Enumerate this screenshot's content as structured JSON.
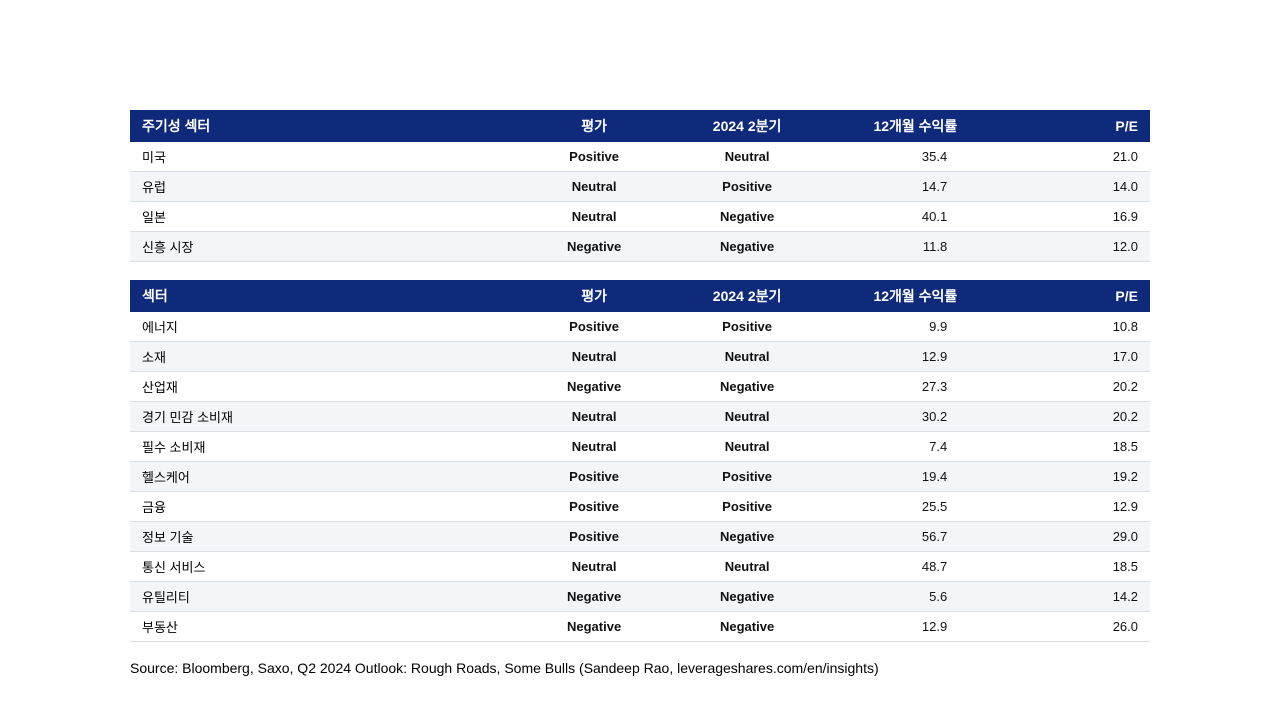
{
  "colors": {
    "header_bg": "#0f2a7a",
    "header_text": "#ffffff",
    "row_alt_bg": "#f3f5f9",
    "border": "#d9dde4",
    "positive": "#1fa63a",
    "neutral": "#9aa0a8",
    "negative": "#e64540"
  },
  "columns": {
    "rating": "평가",
    "q2": "2024 2분기",
    "return": "12개월 수익률",
    "pe": "P/E"
  },
  "table1": {
    "name_header": "주기성 섹터",
    "rows": [
      {
        "name": "미국",
        "rating": "Positive",
        "q2": "Neutral",
        "return": "35.4",
        "pe": "21.0"
      },
      {
        "name": "유럽",
        "rating": "Neutral",
        "q2": "Positive",
        "return": "14.7",
        "pe": "14.0"
      },
      {
        "name": "일본",
        "rating": "Neutral",
        "q2": "Negative",
        "return": "40.1",
        "pe": "16.9"
      },
      {
        "name": "신흥 시장",
        "rating": "Negative",
        "q2": "Negative",
        "return": "11.8",
        "pe": "12.0"
      }
    ]
  },
  "table2": {
    "name_header": "섹터",
    "rows": [
      {
        "name": "에너지",
        "rating": "Positive",
        "q2": "Positive",
        "return": "9.9",
        "pe": "10.8"
      },
      {
        "name": "소재",
        "rating": "Neutral",
        "q2": "Neutral",
        "return": "12.9",
        "pe": "17.0"
      },
      {
        "name": "산업재",
        "rating": "Negative",
        "q2": "Negative",
        "return": "27.3",
        "pe": "20.2"
      },
      {
        "name": "경기 민감 소비재",
        "rating": "Neutral",
        "q2": "Neutral",
        "return": "30.2",
        "pe": "20.2"
      },
      {
        "name": "필수 소비재",
        "rating": "Neutral",
        "q2": "Neutral",
        "return": "7.4",
        "pe": "18.5"
      },
      {
        "name": "헬스케어",
        "rating": "Positive",
        "q2": "Positive",
        "return": "19.4",
        "pe": "19.2"
      },
      {
        "name": "금융",
        "rating": "Positive",
        "q2": "Positive",
        "return": "25.5",
        "pe": "12.9"
      },
      {
        "name": "정보 기술",
        "rating": "Positive",
        "q2": "Negative",
        "return": "56.7",
        "pe": "29.0"
      },
      {
        "name": "통신 서비스",
        "rating": "Neutral",
        "q2": "Neutral",
        "return": "48.7",
        "pe": "18.5"
      },
      {
        "name": "유틸리티",
        "rating": "Negative",
        "q2": "Negative",
        "return": "5.6",
        "pe": "14.2"
      },
      {
        "name": "부동산",
        "rating": "Negative",
        "q2": "Negative",
        "return": "12.9",
        "pe": "26.0"
      }
    ]
  },
  "source": "Source: Bloomberg, Saxo, Q2 2024 Outlook: Rough Roads, Some Bulls (Sandeep Rao, leverageshares.com/en/insights)"
}
